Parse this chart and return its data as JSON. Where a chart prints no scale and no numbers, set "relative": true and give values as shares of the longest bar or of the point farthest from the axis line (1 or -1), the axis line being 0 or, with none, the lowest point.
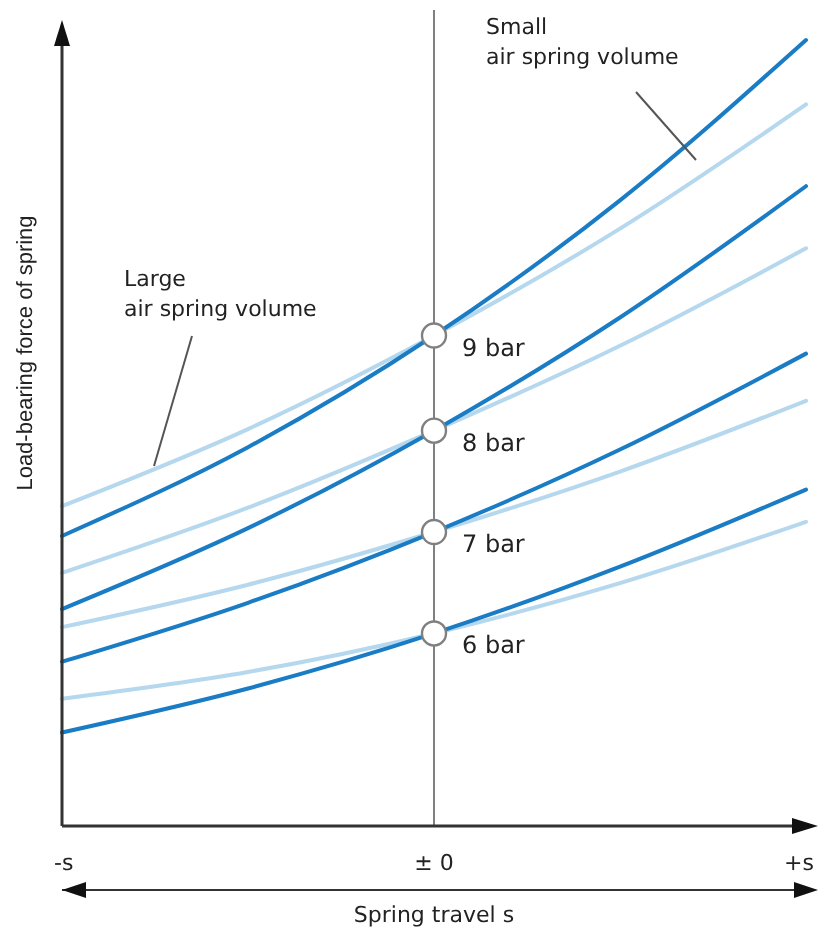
{
  "chart_data": {
    "type": "line",
    "relative": true,
    "xlabel": "Spring travel s",
    "ylabel": "Load-bearing force of spring",
    "categories": [
      "-s",
      null,
      "± 0",
      null,
      "+s"
    ],
    "tick_labels": "x",
    "marker": "none",
    "line_style": "solid",
    "ref_lines": [
      {
        "axis": "x",
        "value": "± 0",
        "color": "#808080"
      }
    ],
    "series": [
      {
        "color": "#b5d8ee",
        "values": [
          0.407,
          0.505,
          0.624,
          0.76,
          0.918
        ]
      },
      {
        "color": "#b5d8ee",
        "values": [
          0.322,
          0.405,
          0.503,
          0.611,
          0.735
        ]
      },
      {
        "color": "#b5d8ee",
        "values": [
          0.253,
          0.307,
          0.374,
          0.451,
          0.541
        ]
      },
      {
        "color": "#b5d8ee",
        "values": [
          0.162,
          0.196,
          0.245,
          0.309,
          0.387
        ]
      },
      {
        "name": "9 bar",
        "color": "#1a7cc4",
        "values": [
          0.369,
          0.482,
          0.624,
          0.796,
          1
        ]
      },
      {
        "name": "8 bar",
        "color": "#1a7cc4",
        "values": [
          0.276,
          0.379,
          0.503,
          0.647,
          0.814
        ]
      },
      {
        "name": "7 bar",
        "color": "#1a7cc4",
        "values": [
          0.209,
          0.284,
          0.374,
          0.479,
          0.601
        ]
      },
      {
        "name": "6 bar",
        "color": "#1a7cc4",
        "values": [
          0.119,
          0.175,
          0.245,
          0.33,
          0.428
        ]
      }
    ],
    "annotations": [
      "Small air spring volume",
      "Large air spring volume"
    ]
  }
}
